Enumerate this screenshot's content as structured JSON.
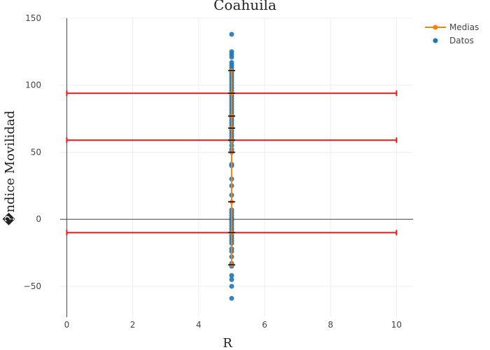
{
  "chart_data": {
    "type": "scatter",
    "title": "Coahuila",
    "xlabel": "R",
    "ylabel": "�ndice Movilidad",
    "xlim": [
      -0.2,
      10.5
    ],
    "ylim": [
      -73,
      150
    ],
    "xticks": [
      0,
      2,
      4,
      6,
      8,
      10
    ],
    "yticks": [
      -50,
      0,
      50,
      100,
      150
    ],
    "tick_labels_x": [
      "0",
      "2",
      "4",
      "6",
      "8",
      "10"
    ],
    "tick_labels_y": [
      "−50",
      "0",
      "50",
      "100",
      "150"
    ],
    "grid": true,
    "legend_position": "top-right",
    "legend": [
      "Medias",
      "Datos"
    ],
    "colors": {
      "medias": "#ff7f0e",
      "datos": "#1f77b4",
      "bands": "#e31a1c",
      "errors": "#000000"
    },
    "series": [
      {
        "name": "Datos",
        "x": 5,
        "y": [
          138,
          125,
          123,
          121,
          117,
          115,
          113,
          111,
          110,
          108,
          106,
          104,
          102,
          100,
          98,
          96,
          94,
          92,
          90,
          88,
          86,
          84,
          82,
          80,
          78,
          76,
          74,
          72,
          70,
          68,
          66,
          64,
          62,
          60,
          58,
          55,
          52,
          50,
          41,
          40,
          30,
          25,
          18,
          7,
          5,
          3,
          1,
          0,
          -1,
          -3,
          -5,
          -7,
          -9,
          -12,
          -14,
          -16,
          -18,
          -22,
          -24,
          -28,
          -33,
          -35,
          -42,
          -45,
          -50,
          -59
        ]
      },
      {
        "name": "Medias",
        "x": 5,
        "y": [
          -34,
          -10,
          13,
          50,
          59,
          68,
          77,
          94,
          111
        ]
      }
    ],
    "error_marks_y": [
      111,
      94,
      77,
      68,
      59,
      50,
      13,
      -10,
      -34
    ],
    "bands": [
      {
        "y": 94,
        "x_range": [
          0,
          10
        ]
      },
      {
        "y": 59,
        "x_range": [
          0,
          10
        ]
      },
      {
        "y": -10,
        "x_range": [
          0,
          10
        ]
      }
    ]
  }
}
